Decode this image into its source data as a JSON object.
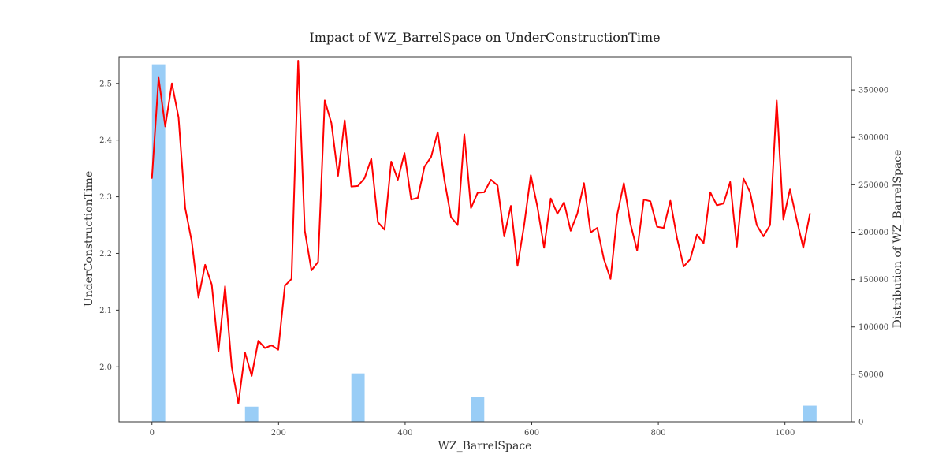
{
  "chart_data": {
    "type": "line",
    "title": "Impact of WZ_BarrelSpace on UnderConstructionTime",
    "xlabel": "WZ_BarrelSpace",
    "ylabel": "UnderConstructionTime",
    "y2label": "Distribution of WZ_BarrelSpace",
    "xlim": [
      -52,
      1105
    ],
    "ylim": [
      1.903,
      2.547
    ],
    "y2lim": [
      0,
      385000
    ],
    "x_ticks": [
      0,
      200,
      400,
      600,
      800,
      1000
    ],
    "y_ticks": [
      2.0,
      2.1,
      2.2,
      2.3,
      2.4,
      2.5
    ],
    "y2_ticks": [
      0,
      50000,
      100000,
      150000,
      200000,
      250000,
      300000,
      350000
    ],
    "grid": false,
    "line_color": "#ff0000",
    "bar_color": "#8ec8f5",
    "series": [
      {
        "type": "line",
        "x": [
          0,
          10.5,
          21,
          31.5,
          42,
          52.5,
          63,
          73.5,
          84,
          94.5,
          105,
          115.5,
          126,
          136.5,
          147,
          157.5,
          168,
          178.5,
          189,
          199.5,
          210,
          220.5,
          231,
          241.5,
          252,
          262.5,
          273,
          283.5,
          294,
          304.5,
          315,
          325.5,
          336,
          346.5,
          357,
          367.5,
          378,
          388.5,
          399,
          409.5,
          420,
          430.5,
          441,
          451.5,
          462,
          472.5,
          483,
          493.5,
          504,
          514.5,
          525,
          535.5,
          546,
          556.5,
          567,
          577.5,
          588,
          598.5,
          609,
          619.5,
          630,
          640.5,
          651,
          661.5,
          672,
          682.5,
          693,
          703.5,
          714,
          724.5,
          735,
          745.5,
          756,
          766.5,
          777,
          787.5,
          798,
          808.5,
          819,
          829.5,
          840,
          850.5,
          861,
          871.5,
          882,
          892.5,
          903,
          913.5,
          924,
          934.5,
          945,
          955.5,
          966,
          976.5,
          987,
          997.5,
          1008,
          1018.5,
          1029,
          1039.5
        ],
        "values": [
          2.333,
          2.51,
          2.424,
          2.5,
          2.44,
          2.28,
          2.22,
          2.122,
          2.18,
          2.145,
          2.027,
          2.142,
          2.0,
          1.935,
          2.025,
          1.984,
          2.046,
          2.033,
          2.038,
          2.03,
          2.143,
          2.155,
          2.54,
          2.24,
          2.17,
          2.185,
          2.47,
          2.43,
          2.337,
          2.435,
          2.318,
          2.319,
          2.333,
          2.367,
          2.255,
          2.242,
          2.362,
          2.33,
          2.377,
          2.295,
          2.298,
          2.353,
          2.37,
          2.414,
          2.33,
          2.264,
          2.25,
          2.41,
          2.28,
          2.307,
          2.308,
          2.33,
          2.32,
          2.23,
          2.284,
          2.178,
          2.25,
          2.338,
          2.282,
          2.21,
          2.297,
          2.27,
          2.29,
          2.24,
          2.27,
          2.324,
          2.237,
          2.245,
          2.19,
          2.155,
          2.268,
          2.324,
          2.252,
          2.205,
          2.295,
          2.292,
          2.247,
          2.245,
          2.293,
          2.227,
          2.177,
          2.19,
          2.233,
          2.218,
          2.308,
          2.285,
          2.288,
          2.326,
          2.212,
          2.332,
          2.308,
          2.25,
          2.23,
          2.25,
          2.47,
          2.26,
          2.313,
          2.26,
          2.21,
          2.27
        ]
      },
      {
        "type": "bar",
        "bins": [
          {
            "x0": 0,
            "x1": 21,
            "value": 377000
          },
          {
            "x0": 147,
            "x1": 168,
            "value": 16000
          },
          {
            "x0": 315,
            "x1": 336,
            "value": 51000
          },
          {
            "x0": 504,
            "x1": 525,
            "value": 26000
          },
          {
            "x0": 1029,
            "x1": 1050,
            "value": 17000
          }
        ]
      }
    ]
  }
}
